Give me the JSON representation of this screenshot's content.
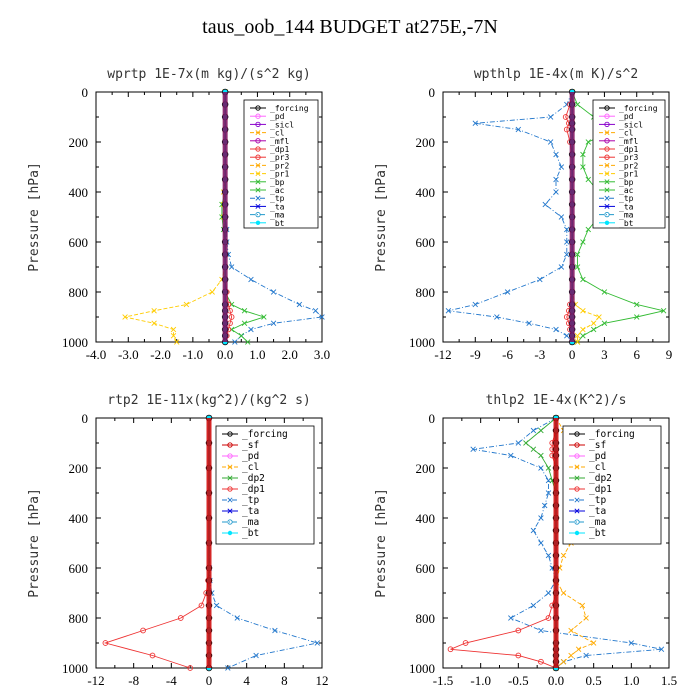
{
  "figure_title": "taus_oob_144  BUDGET at275E,-7N",
  "chart_data": [
    {
      "id": "wprtp",
      "type": "line",
      "title": "wprtp  1E-7x(m kg)/(s^2 kg)",
      "ylabel": "Pressure [hPa]",
      "xlim": [
        -4.0,
        3.0
      ],
      "ylim": [
        1000,
        0
      ],
      "xticks": [
        "-4.0",
        "-3.0",
        "-2.0",
        "-1.0",
        "0.0",
        "1.0",
        "2.0",
        "3.0"
      ],
      "yticks": [
        "0",
        "200",
        "400",
        "600",
        "800",
        "1000"
      ],
      "legend": [
        "_forcing",
        "_pd",
        "_sicl",
        "_cl",
        "_mfl",
        "_dp1",
        "_pr3",
        "_pr2",
        "_pr1",
        "_bp",
        "_ac",
        "_tp",
        "_ta",
        "_ma",
        "_bt"
      ],
      "y": [
        0,
        50,
        100,
        150,
        200,
        250,
        300,
        350,
        400,
        450,
        500,
        550,
        600,
        650,
        700,
        750,
        800,
        850,
        875,
        900,
        925,
        950,
        975,
        1000
      ],
      "series": [
        {
          "name": "_tp",
          "x": [
            0,
            0,
            0,
            0,
            0,
            0,
            0,
            0,
            0,
            0,
            0,
            0.05,
            0.05,
            0.1,
            0.2,
            0.8,
            1.5,
            2.3,
            2.8,
            3.0,
            1.5,
            0.8,
            0.5,
            0.3
          ]
        },
        {
          "name": "_ac",
          "x": [
            0,
            0,
            0,
            0,
            0,
            0,
            0,
            0,
            0,
            -0.1,
            -0.1,
            -0.05,
            0,
            0,
            0,
            0,
            0,
            0.2,
            0.6,
            1.2,
            0.6,
            0.2,
            0.5,
            0.7
          ]
        },
        {
          "name": "_pr1",
          "x": [
            0,
            0,
            0,
            0,
            0,
            0,
            0,
            0,
            -0.05,
            -0.05,
            -0.05,
            0,
            0,
            0,
            0,
            -0.1,
            -0.4,
            -1.2,
            -2.2,
            -3.1,
            -2.2,
            -1.6,
            -1.6,
            -1.5
          ]
        },
        {
          "name": "_dp1",
          "x": [
            0,
            0,
            0,
            0,
            0,
            0,
            0,
            0,
            0,
            0,
            0,
            0,
            0,
            0,
            0,
            0,
            0.05,
            0.1,
            0.15,
            0.2,
            0.15,
            0.1,
            0.05,
            0
          ]
        },
        {
          "name": "_forcing",
          "x": [
            0,
            0,
            0,
            0,
            0,
            0,
            0,
            0,
            0,
            0,
            0,
            0,
            0,
            0,
            0,
            0,
            0,
            0,
            0,
            0,
            0,
            0,
            0,
            0
          ]
        },
        {
          "name": "_bt",
          "x": [
            0,
            0,
            0,
            0,
            0,
            0,
            0,
            0,
            0,
            0,
            0,
            0,
            0,
            0,
            0,
            0,
            0,
            0,
            0,
            0,
            0,
            0,
            0,
            0
          ]
        }
      ]
    },
    {
      "id": "wpthlp",
      "type": "line",
      "title": "wpthlp  1E-4x(m K)/s^2",
      "ylabel": "Pressure [hPa]",
      "xlim": [
        -12,
        9
      ],
      "ylim": [
        1000,
        0
      ],
      "xticks": [
        "-12",
        "-9",
        "-6",
        "-3",
        "0",
        "3",
        "6",
        "9"
      ],
      "yticks": [
        "0",
        "200",
        "400",
        "600",
        "800",
        "1000"
      ],
      "legend": [
        "_forcing",
        "_pd",
        "_sicl",
        "_cl",
        "_mfl",
        "_dp1",
        "_pr3",
        "_pr2",
        "_pr1",
        "_bp",
        "_ac",
        "_tp",
        "_ta",
        "_ma",
        "_bt"
      ],
      "y": [
        0,
        50,
        100,
        125,
        150,
        200,
        250,
        300,
        350,
        400,
        450,
        500,
        550,
        600,
        650,
        700,
        750,
        800,
        850,
        875,
        900,
        925,
        950,
        975,
        1000
      ],
      "series": [
        {
          "name": "_tp",
          "x": [
            0,
            -0.5,
            -2,
            -9,
            -5,
            -2,
            -1.5,
            -1,
            -1.5,
            -1.5,
            -2.5,
            -1,
            -0.5,
            -0.5,
            -0.5,
            -1,
            -3,
            -6,
            -9,
            -11.5,
            -7,
            -4,
            -1.5,
            -0.5,
            0
          ]
        },
        {
          "name": "_ac",
          "x": [
            0,
            0.5,
            2,
            7,
            4,
            1.5,
            1,
            1,
            1.5,
            2.5,
            3.5,
            2.5,
            1.5,
            1,
            0.5,
            0.5,
            1,
            3,
            6,
            8.5,
            6,
            3,
            2,
            1,
            0.5
          ]
        },
        {
          "name": "_pr1",
          "x": [
            0,
            0,
            0,
            0,
            0,
            0,
            0,
            0,
            0,
            0,
            0,
            0,
            0,
            0,
            0,
            0,
            0,
            0,
            0.3,
            1,
            2.5,
            2,
            1,
            0.5,
            0.5
          ]
        },
        {
          "name": "_dp1",
          "x": [
            0,
            -0.2,
            -0.6,
            -0.3,
            -0.5,
            -0.2,
            0,
            0,
            0,
            0,
            0,
            0,
            0,
            0,
            0,
            0,
            0,
            0,
            -0.2,
            -0.3,
            -0.5,
            -0.3,
            -0.2,
            0,
            0
          ]
        },
        {
          "name": "_forcing",
          "x": [
            0,
            0,
            0,
            0,
            0,
            0,
            0,
            0,
            0,
            0,
            0,
            0,
            0,
            0,
            0,
            0,
            0,
            0,
            0,
            0,
            0,
            0,
            0,
            0,
            0
          ]
        },
        {
          "name": "_bt",
          "x": [
            0,
            0,
            0,
            0,
            0,
            0,
            0,
            0,
            0,
            0,
            0,
            0,
            0,
            0,
            0,
            0,
            0,
            0,
            0,
            0,
            0,
            0,
            0,
            0,
            0
          ]
        }
      ]
    },
    {
      "id": "rtp2",
      "type": "line",
      "title": "rtp2  1E-11x(kg^2)/(kg^2 s)",
      "ylabel": "Pressure [hPa]",
      "xlim": [
        -12,
        12
      ],
      "ylim": [
        1000,
        0
      ],
      "xticks": [
        "-12",
        "-8",
        "-4",
        "0",
        "4",
        "8",
        "12"
      ],
      "yticks": [
        "0",
        "200",
        "400",
        "600",
        "800",
        "1000"
      ],
      "legend": [
        "_forcing",
        "_sf",
        "_pd",
        "_cl",
        "_dp2",
        "_dp1",
        "_tp",
        "_ta",
        "_ma",
        "_bt"
      ],
      "y": [
        0,
        100,
        200,
        300,
        400,
        500,
        600,
        650,
        700,
        750,
        800,
        850,
        900,
        950,
        1000
      ],
      "series": [
        {
          "name": "_tp",
          "x": [
            0,
            0,
            0,
            0,
            0,
            0,
            0.05,
            0.1,
            0.3,
            0.8,
            3,
            7,
            11.5,
            5,
            2
          ]
        },
        {
          "name": "_dp1",
          "x": [
            0,
            0,
            0,
            0,
            0,
            0,
            0,
            -0.1,
            -0.3,
            -0.8,
            -3,
            -7,
            -11,
            -6,
            -2
          ]
        },
        {
          "name": "_forcing",
          "x": [
            0,
            0,
            0,
            0,
            0,
            0,
            0,
            0,
            0,
            0,
            0,
            0,
            0,
            0,
            0
          ]
        },
        {
          "name": "_bt",
          "x": [
            0,
            0,
            0,
            0,
            0,
            0,
            0,
            0,
            0,
            0,
            0,
            0,
            0,
            0,
            0
          ]
        }
      ]
    },
    {
      "id": "thlp2",
      "type": "line",
      "title": "thlp2  1E-4x(K^2)/s",
      "ylabel": "Pressure [hPa]",
      "xlim": [
        -1.5,
        1.5
      ],
      "ylim": [
        1000,
        0
      ],
      "xticks": [
        "-1.5",
        "-1.0",
        "-0.5",
        "0.0",
        "0.5",
        "1.0",
        "1.5"
      ],
      "yticks": [
        "0",
        "200",
        "400",
        "600",
        "800",
        "1000"
      ],
      "legend": [
        "_forcing",
        "_sf",
        "_pd",
        "_cl",
        "_dp2",
        "_dp1",
        "_tp",
        "_ta",
        "_ma",
        "_bt"
      ],
      "y": [
        0,
        50,
        100,
        125,
        150,
        200,
        250,
        300,
        350,
        400,
        450,
        500,
        550,
        600,
        650,
        700,
        750,
        800,
        850,
        900,
        925,
        950,
        975,
        1000
      ],
      "series": [
        {
          "name": "_tp",
          "x": [
            0,
            -0.3,
            -0.5,
            -1.1,
            -0.6,
            -0.2,
            -0.1,
            -0.1,
            -0.15,
            -0.2,
            -0.3,
            -0.2,
            -0.1,
            -0.05,
            0,
            -0.1,
            -0.3,
            -0.6,
            -0.2,
            1.0,
            1.4,
            0.4,
            0.1,
            0
          ]
        },
        {
          "name": "_dp1",
          "x": [
            0,
            0,
            -0.05,
            -0.05,
            -0.05,
            0,
            0,
            0,
            0,
            0,
            0,
            0,
            0,
            0,
            0,
            0,
            -0.05,
            -0.1,
            -0.5,
            -1.2,
            -1.4,
            -0.5,
            -0.2,
            0
          ]
        },
        {
          "name": "_dp2",
          "x": [
            0,
            -0.2,
            -0.4,
            -0.3,
            -0.2,
            -0.1,
            -0.05,
            0,
            0,
            0,
            0,
            0,
            0,
            0,
            0,
            0,
            0,
            0,
            0,
            0,
            0,
            0,
            0,
            0
          ]
        },
        {
          "name": "_cl",
          "x": [
            0,
            0.1,
            0.3,
            0.8,
            0.5,
            0.3,
            0.2,
            0.2,
            0.3,
            0.35,
            0.3,
            0.2,
            0.1,
            0.05,
            0,
            0.1,
            0.35,
            0.4,
            0.2,
            0.5,
            0.3,
            0.2,
            0.1,
            0
          ]
        },
        {
          "name": "_forcing",
          "x": [
            0,
            0,
            0,
            0,
            0,
            0,
            0,
            0,
            0,
            0,
            0,
            0,
            0,
            0,
            0,
            0,
            0,
            0,
            0,
            0,
            0,
            0,
            0,
            0
          ]
        },
        {
          "name": "_bt",
          "x": [
            0,
            0,
            0,
            0,
            0,
            0,
            0,
            0,
            0,
            0,
            0,
            0,
            0,
            0,
            0,
            0,
            0,
            0,
            0,
            0,
            0,
            0,
            0,
            0
          ]
        }
      ]
    }
  ],
  "series_colors": {
    "_forcing": "#000000",
    "_sf": "#cc0000",
    "_pd": "#ff66ff",
    "_sicl": "#8800cc",
    "_cl": "#ffaa00",
    "_mfl": "#aa00aa",
    "_dp2": "#33aa33",
    "_dp1": "#ee3333",
    "_pr3": "#ee3333",
    "_pr2": "#ffaa00",
    "_pr1": "#ffcc00",
    "_bp": "#33bb33",
    "_ac": "#33bb33",
    "_tp": "#2277cc",
    "_ta": "#0000dd",
    "_ma": "#2299cc",
    "_bt": "#00e5ff"
  }
}
